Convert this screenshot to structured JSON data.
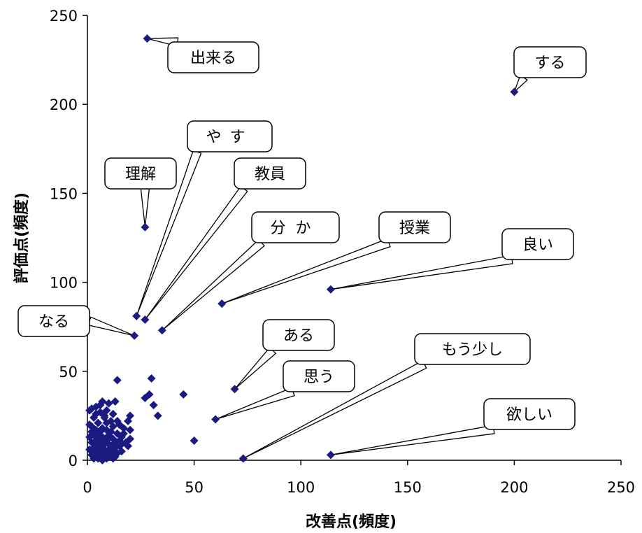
{
  "chart_data": {
    "type": "scatter",
    "title": "",
    "xlabel": "改善点(頻度)",
    "ylabel": "評価点(頻度)",
    "xlim": [
      0,
      250
    ],
    "ylim": [
      0,
      250
    ],
    "x_ticks": [
      "0",
      "50",
      "100",
      "150",
      "200",
      "250"
    ],
    "y_ticks": [
      "0",
      "50",
      "100",
      "150",
      "200",
      "250"
    ],
    "grid": false,
    "legend": "none",
    "marker": "diamond",
    "color": "#1a1a80",
    "labeled_points": [
      {
        "label": "出来る",
        "x": 28,
        "y": 237
      },
      {
        "label": "する",
        "x": 200,
        "y": 207
      },
      {
        "label": "理解",
        "x": 27,
        "y": 131
      },
      {
        "label": "やす",
        "x": 23,
        "y": 81
      },
      {
        "label": "教員",
        "x": 27,
        "y": 79
      },
      {
        "label": "分か",
        "x": 35,
        "y": 73
      },
      {
        "label": "授業",
        "x": 63,
        "y": 88
      },
      {
        "label": "良い",
        "x": 114,
        "y": 96
      },
      {
        "label": "なる",
        "x": 22,
        "y": 70
      },
      {
        "label": "ある",
        "x": 69,
        "y": 40
      },
      {
        "label": "思う",
        "x": 60,
        "y": 23
      },
      {
        "label": "もう少し",
        "x": 73,
        "y": 1
      },
      {
        "label": "欲しい",
        "x": 114,
        "y": 3
      }
    ],
    "other_points": [
      [
        30,
        46
      ],
      [
        45,
        37
      ],
      [
        29,
        37
      ],
      [
        27,
        35
      ],
      [
        31,
        31
      ],
      [
        33,
        25
      ],
      [
        50,
        11
      ],
      [
        14,
        45
      ],
      [
        20,
        25
      ],
      [
        19,
        22
      ],
      [
        20,
        17
      ],
      [
        20,
        12
      ],
      [
        19,
        8
      ],
      [
        2,
        29
      ],
      [
        4,
        30
      ],
      [
        7,
        33
      ],
      [
        10,
        32
      ],
      [
        13,
        33
      ],
      [
        6,
        27
      ],
      [
        9,
        28
      ],
      [
        3,
        24
      ],
      [
        8,
        25
      ],
      [
        12,
        26
      ],
      [
        15,
        20
      ],
      [
        17,
        18
      ],
      [
        2,
        19
      ],
      [
        5,
        21
      ],
      [
        11,
        22
      ],
      [
        14,
        15
      ],
      [
        16,
        13
      ],
      [
        3,
        14
      ],
      [
        6,
        16
      ],
      [
        9,
        17
      ],
      [
        12,
        12
      ],
      [
        2,
        10
      ],
      [
        4,
        11
      ],
      [
        7,
        13
      ],
      [
        10,
        9
      ],
      [
        13,
        10
      ],
      [
        15,
        8
      ],
      [
        1,
        6
      ],
      [
        3,
        7
      ],
      [
        5,
        8
      ],
      [
        8,
        6
      ],
      [
        11,
        5
      ],
      [
        14,
        4
      ],
      [
        2,
        3
      ],
      [
        4,
        4
      ],
      [
        6,
        2
      ],
      [
        8,
        3
      ],
      [
        10,
        2
      ],
      [
        12,
        1
      ],
      [
        7,
        0
      ],
      [
        9,
        1
      ],
      [
        5,
        1
      ],
      [
        3,
        1
      ],
      [
        16,
        5
      ],
      [
        18,
        10
      ],
      [
        6,
        10
      ],
      [
        8,
        9
      ],
      [
        10,
        14
      ],
      [
        12,
        19
      ],
      [
        5,
        14
      ],
      [
        7,
        18
      ],
      [
        9,
        21
      ],
      [
        4,
        17
      ],
      [
        1,
        13
      ],
      [
        1,
        20
      ],
      [
        6,
        6
      ],
      [
        8,
        12
      ],
      [
        11,
        16
      ],
      [
        13,
        7
      ],
      [
        9,
        5
      ],
      [
        7,
        7
      ],
      [
        5,
        5
      ],
      [
        3,
        4
      ],
      [
        2,
        16
      ],
      [
        10,
        6
      ],
      [
        12,
        3
      ],
      [
        15,
        11
      ],
      [
        17,
        15
      ],
      [
        14,
        22
      ],
      [
        6,
        31
      ],
      [
        8,
        24
      ],
      [
        4,
        26
      ],
      [
        1,
        28
      ],
      [
        9,
        11
      ],
      [
        11,
        8
      ],
      [
        7,
        4
      ],
      [
        5,
        11
      ],
      [
        3,
        9
      ],
      [
        13,
        2
      ],
      [
        16,
        9
      ]
    ]
  }
}
